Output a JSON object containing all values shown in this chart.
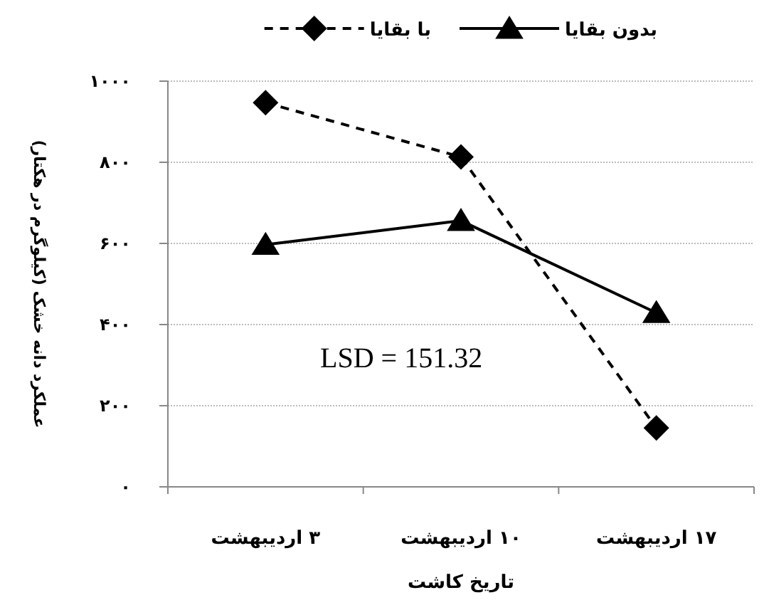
{
  "chart_data": {
    "type": "line",
    "xlabel": "تاریخ کاشت",
    "ylabel": "عملکرد دانه خشک (کیلوگرم در هکتار)",
    "categories": [
      "۳ اردیبهشت",
      "۱۰ اردیبهشت",
      "۱۷ اردیبهشت"
    ],
    "series": [
      {
        "name": "بدون بقایا",
        "color": "#000000",
        "marker": "triangle",
        "line_style": "solid",
        "values": [
          597,
          656,
          429
        ]
      },
      {
        "name": "با بقایا",
        "color": "#000000",
        "marker": "diamond",
        "line_style": "dashed",
        "values": [
          947,
          813,
          145
        ]
      }
    ],
    "ylim": [
      0,
      1000
    ],
    "yticks": [
      {
        "value": 0,
        "label": "۰"
      },
      {
        "value": 200,
        "label": "۲۰۰"
      },
      {
        "value": 400,
        "label": "۴۰۰"
      },
      {
        "value": 600,
        "label": "۶۰۰"
      },
      {
        "value": 800,
        "label": "۸۰۰"
      },
      {
        "value": 1000,
        "label": "۱۰۰۰"
      }
    ],
    "grid": "y",
    "legend": "top",
    "annotations": [
      "LSD = 151.32"
    ]
  }
}
